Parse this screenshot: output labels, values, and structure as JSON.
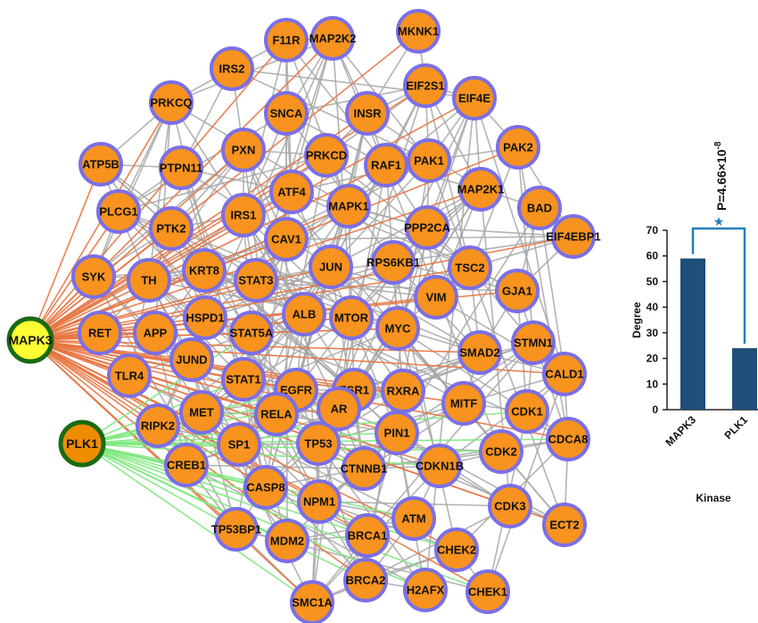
{
  "network": {
    "hubs": [
      {
        "id": "MAPK3",
        "label": "MAPK3",
        "fill": "#ffff33",
        "stroke": "#1a6b12",
        "edge_color": "#e8733f"
      },
      {
        "id": "PLK1",
        "label": "PLK1",
        "fill": "#f08c00",
        "stroke": "#1a6b12",
        "edge_color": "#7de87d"
      }
    ],
    "node_style": {
      "fill": "#f7931e",
      "stroke": "#7b6fe6",
      "edge_color": "#a6a6a6"
    },
    "nodes": [
      "F11R",
      "MAP2K2",
      "MKNK1",
      "IRS2",
      "EIF2S1",
      "EIF4E",
      "PRKCQ",
      "SNCA",
      "INSR",
      "PAK2",
      "ATP5B",
      "PTPN11",
      "PXN",
      "PRKCD",
      "RAF1",
      "PAK1",
      "MAP2K1",
      "PLCG1",
      "ATF4",
      "BAD",
      "PTK2",
      "IRS1",
      "MAPK1",
      "PPP2CA",
      "EIF4EBP1",
      "CAV1",
      "SYK",
      "TH",
      "KRT8",
      "STAT3",
      "JUN",
      "RPS6KB1",
      "TSC2",
      "GJA1",
      "VIM",
      "RET",
      "APP",
      "HSPD1",
      "STAT5A",
      "ALB",
      "MTOR",
      "MYC",
      "SMAD2",
      "STMN1",
      "JUND",
      "CALD1",
      "TLR4",
      "STAT1",
      "EGFR",
      "ESR1",
      "RXRA",
      "MET",
      "RELA",
      "AR",
      "MITF",
      "CDK1",
      "RIPK2",
      "PIN1",
      "SP1",
      "TP53",
      "CREB1",
      "CTNNB1",
      "CDKN1B",
      "CDK2",
      "CDCA8",
      "CASP8",
      "NPM1",
      "ATM",
      "CDK3",
      "ECT2",
      "TP53BP1",
      "MDM2",
      "BRCA1",
      "CHEK2",
      "BRCA2",
      "H2AFX",
      "CHEK1",
      "SMC1A"
    ]
  },
  "chart_data": {
    "type": "bar",
    "categories": [
      "MAPK3",
      "PLK1"
    ],
    "values": [
      59,
      24
    ],
    "ylabel": "Degree",
    "xlabel": "Kinase",
    "ylim": [
      0,
      70
    ],
    "yticks": [
      0,
      10,
      20,
      30,
      40,
      50,
      60,
      70
    ],
    "bar_color": "#1f4e79",
    "annotation": {
      "marker": "★",
      "text": "P=4.66×10",
      "exponent": "-8",
      "color": "#1f7fbf"
    }
  }
}
